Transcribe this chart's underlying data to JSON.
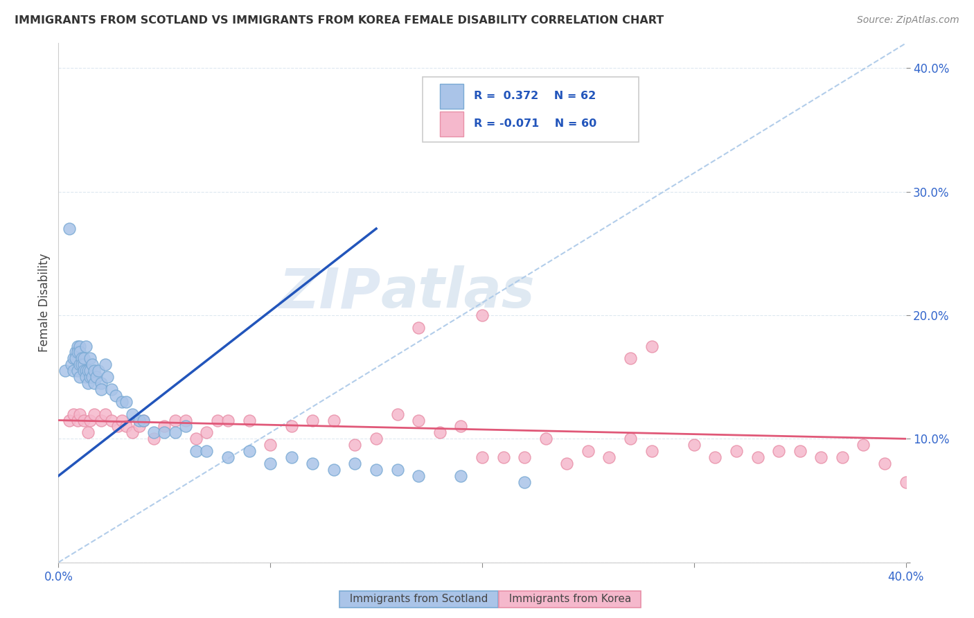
{
  "title": "IMMIGRANTS FROM SCOTLAND VS IMMIGRANTS FROM KOREA FEMALE DISABILITY CORRELATION CHART",
  "source": "Source: ZipAtlas.com",
  "ylabel": "Female Disability",
  "xlim": [
    0.0,
    0.4
  ],
  "ylim": [
    0.0,
    0.42
  ],
  "scotland_color": "#aac4e8",
  "korea_color": "#f5b8cc",
  "scotland_edge": "#7aaad4",
  "korea_edge": "#e890a8",
  "trend_scotland_color": "#2255bb",
  "trend_korea_color": "#e05878",
  "trend_dashed_color": "#aac8e8",
  "R_scotland": 0.372,
  "N_scotland": 62,
  "R_korea": -0.071,
  "N_korea": 60,
  "background_color": "#ffffff",
  "grid_color": "#dde8f0",
  "scotland_x": [
    0.003,
    0.005,
    0.006,
    0.007,
    0.007,
    0.008,
    0.008,
    0.009,
    0.009,
    0.009,
    0.01,
    0.01,
    0.01,
    0.01,
    0.011,
    0.011,
    0.012,
    0.012,
    0.012,
    0.013,
    0.013,
    0.013,
    0.014,
    0.014,
    0.015,
    0.015,
    0.015,
    0.016,
    0.016,
    0.017,
    0.017,
    0.018,
    0.019,
    0.02,
    0.02,
    0.022,
    0.023,
    0.025,
    0.027,
    0.03,
    0.032,
    0.035,
    0.038,
    0.04,
    0.045,
    0.05,
    0.055,
    0.06,
    0.065,
    0.07,
    0.08,
    0.09,
    0.1,
    0.11,
    0.12,
    0.13,
    0.14,
    0.15,
    0.16,
    0.17,
    0.19,
    0.22
  ],
  "scotland_y": [
    0.155,
    0.27,
    0.16,
    0.165,
    0.155,
    0.17,
    0.165,
    0.175,
    0.17,
    0.155,
    0.175,
    0.17,
    0.16,
    0.15,
    0.165,
    0.16,
    0.16,
    0.155,
    0.165,
    0.155,
    0.15,
    0.175,
    0.155,
    0.145,
    0.15,
    0.165,
    0.155,
    0.16,
    0.15,
    0.155,
    0.145,
    0.15,
    0.155,
    0.145,
    0.14,
    0.16,
    0.15,
    0.14,
    0.135,
    0.13,
    0.13,
    0.12,
    0.115,
    0.115,
    0.105,
    0.105,
    0.105,
    0.11,
    0.09,
    0.09,
    0.085,
    0.09,
    0.08,
    0.085,
    0.08,
    0.075,
    0.08,
    0.075,
    0.075,
    0.07,
    0.07,
    0.065
  ],
  "korea_x": [
    0.005,
    0.007,
    0.009,
    0.01,
    0.012,
    0.014,
    0.015,
    0.017,
    0.02,
    0.022,
    0.025,
    0.028,
    0.03,
    0.032,
    0.035,
    0.038,
    0.04,
    0.045,
    0.05,
    0.055,
    0.06,
    0.065,
    0.07,
    0.075,
    0.08,
    0.09,
    0.1,
    0.11,
    0.12,
    0.13,
    0.14,
    0.15,
    0.16,
    0.17,
    0.18,
    0.19,
    0.2,
    0.21,
    0.22,
    0.23,
    0.24,
    0.25,
    0.26,
    0.27,
    0.28,
    0.3,
    0.31,
    0.32,
    0.33,
    0.34,
    0.35,
    0.36,
    0.37,
    0.38,
    0.39,
    0.4,
    0.17,
    0.27,
    0.2,
    0.28
  ],
  "korea_y": [
    0.115,
    0.12,
    0.115,
    0.12,
    0.115,
    0.105,
    0.115,
    0.12,
    0.115,
    0.12,
    0.115,
    0.11,
    0.115,
    0.11,
    0.105,
    0.11,
    0.115,
    0.1,
    0.11,
    0.115,
    0.115,
    0.1,
    0.105,
    0.115,
    0.115,
    0.115,
    0.095,
    0.11,
    0.115,
    0.115,
    0.095,
    0.1,
    0.12,
    0.115,
    0.105,
    0.11,
    0.085,
    0.085,
    0.085,
    0.1,
    0.08,
    0.09,
    0.085,
    0.1,
    0.09,
    0.095,
    0.085,
    0.09,
    0.085,
    0.09,
    0.09,
    0.085,
    0.085,
    0.095,
    0.08,
    0.065,
    0.19,
    0.165,
    0.2,
    0.175
  ],
  "scotland_trend_x": [
    0.0,
    0.15
  ],
  "scotland_trend_y": [
    0.07,
    0.27
  ],
  "korea_trend_x": [
    0.0,
    0.4
  ],
  "korea_trend_y": [
    0.115,
    0.1
  ]
}
